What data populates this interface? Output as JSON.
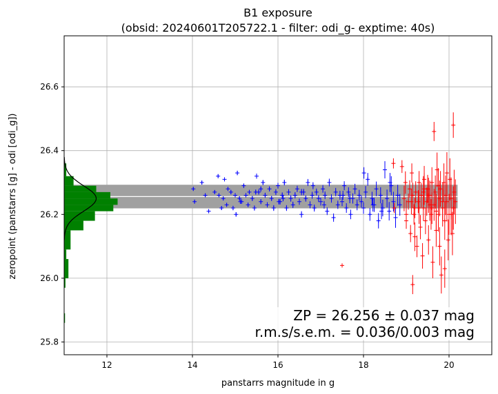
{
  "chart_data": {
    "type": "scatter",
    "title": "B1 exposure",
    "subtitle": "(obsid: 20240601T205722.1 - filter: odi_g- exptime: 40s)",
    "xlabel": "panstarrs magnitude in g",
    "ylabel": "zeropoint (panstarrs [g] - odi [odi_g])",
    "xlim": [
      11.0,
      21.0
    ],
    "ylim": [
      25.76,
      26.76
    ],
    "xticks": [
      12,
      14,
      16,
      18,
      20
    ],
    "yticks": [
      25.8,
      26.0,
      26.2,
      26.4,
      26.6
    ],
    "grid": true,
    "annotations": [
      "ZP = 26.256 ± 0.037 mag",
      "r.m.s/s.e.m. = 0.036/0.003 mag"
    ],
    "zeropoint": {
      "value": 26.256,
      "sigma": 0.037,
      "xrange": [
        11.0,
        20.2
      ]
    },
    "colors": {
      "used": "#0000ff",
      "rejected": "#ff0000",
      "histogram": "#008000",
      "band": "#a0a0a0",
      "gauss": "#000000"
    },
    "series": [
      {
        "role": "used",
        "x": [
          14.02,
          14.05,
          14.22,
          14.38,
          14.52,
          14.6,
          14.62,
          14.72,
          14.75,
          14.8,
          14.83,
          14.9,
          14.95,
          15.0,
          15.05,
          15.1,
          15.15,
          15.2,
          15.25,
          15.3,
          15.33,
          15.4,
          15.45,
          15.5,
          15.55,
          15.6,
          15.65,
          15.7,
          15.75,
          15.8,
          15.85,
          15.9,
          15.95,
          16.0,
          16.05,
          16.1,
          16.15,
          16.2,
          16.25,
          16.3,
          16.35,
          16.4,
          16.45,
          16.5,
          16.55,
          16.6,
          16.65,
          16.7,
          16.75,
          16.8,
          16.85,
          16.9,
          16.95,
          17.0,
          17.05,
          17.1,
          17.15,
          17.2,
          17.25,
          17.3,
          17.35,
          17.4,
          17.45,
          17.5,
          17.55,
          17.6,
          17.65,
          17.7,
          17.75,
          17.8,
          17.85,
          17.9,
          17.95,
          18.0,
          18.05,
          18.1,
          18.15,
          18.2,
          18.25,
          18.3,
          18.35,
          18.4,
          18.45,
          18.5,
          18.55,
          18.6,
          18.65,
          18.7,
          18.75,
          18.8,
          18.85,
          14.3,
          14.68,
          15.12,
          15.6,
          16.12,
          16.55,
          17.08,
          17.52,
          18.01,
          18.42,
          18.62,
          15.02,
          15.48,
          16.02,
          16.82,
          17.68,
          18.22
        ],
        "y": [
          26.28,
          26.24,
          26.3,
          26.21,
          26.27,
          26.32,
          26.26,
          26.25,
          26.31,
          26.23,
          26.28,
          26.27,
          26.22,
          26.26,
          26.33,
          26.25,
          26.24,
          26.29,
          26.26,
          26.23,
          26.27,
          26.25,
          26.22,
          26.32,
          26.27,
          26.24,
          26.3,
          26.26,
          26.23,
          26.28,
          26.25,
          26.22,
          26.27,
          26.29,
          26.24,
          26.26,
          26.3,
          26.22,
          26.27,
          26.25,
          26.23,
          26.26,
          26.28,
          26.24,
          26.2,
          26.27,
          26.25,
          26.3,
          26.23,
          26.26,
          26.22,
          26.27,
          26.25,
          26.24,
          26.28,
          26.26,
          26.21,
          26.3,
          26.25,
          26.19,
          26.27,
          26.23,
          26.26,
          26.24,
          26.29,
          26.22,
          26.27,
          26.2,
          26.25,
          26.28,
          26.23,
          26.26,
          26.24,
          26.22,
          26.27,
          26.31,
          26.2,
          26.25,
          26.23,
          26.28,
          26.18,
          26.26,
          26.22,
          26.34,
          26.25,
          26.21,
          26.29,
          26.24,
          26.19,
          26.26,
          26.23,
          26.26,
          26.22,
          26.24,
          26.28,
          26.25,
          26.27,
          26.23,
          26.26,
          26.33,
          26.21,
          26.3,
          26.2,
          26.27,
          26.24,
          26.29,
          26.25,
          26.23
        ],
        "yerr": [
          0.006,
          0.006,
          0.006,
          0.006,
          0.006,
          0.006,
          0.006,
          0.006,
          0.006,
          0.006,
          0.006,
          0.007,
          0.007,
          0.007,
          0.007,
          0.007,
          0.007,
          0.007,
          0.007,
          0.007,
          0.007,
          0.008,
          0.008,
          0.008,
          0.008,
          0.008,
          0.008,
          0.008,
          0.008,
          0.008,
          0.008,
          0.009,
          0.009,
          0.009,
          0.009,
          0.009,
          0.009,
          0.009,
          0.009,
          0.01,
          0.01,
          0.01,
          0.01,
          0.01,
          0.01,
          0.01,
          0.01,
          0.011,
          0.011,
          0.011,
          0.011,
          0.011,
          0.011,
          0.012,
          0.012,
          0.012,
          0.012,
          0.012,
          0.013,
          0.013,
          0.013,
          0.013,
          0.014,
          0.014,
          0.014,
          0.015,
          0.015,
          0.015,
          0.016,
          0.016,
          0.017,
          0.017,
          0.018,
          0.018,
          0.019,
          0.02,
          0.02,
          0.021,
          0.022,
          0.023,
          0.024,
          0.025,
          0.026,
          0.027,
          0.028,
          0.029,
          0.03,
          0.031,
          0.032,
          0.033,
          0.034,
          0.006,
          0.006,
          0.007,
          0.008,
          0.009,
          0.01,
          0.012,
          0.014,
          0.018,
          0.025,
          0.03,
          0.007,
          0.008,
          0.009,
          0.011,
          0.015,
          0.021
        ]
      },
      {
        "role": "rejected",
        "x": [
          17.5,
          18.7,
          18.72,
          18.9,
          19.0,
          19.05,
          19.08,
          19.1,
          19.13,
          19.15,
          19.18,
          19.2,
          19.22,
          19.25,
          19.28,
          19.3,
          19.33,
          19.35,
          19.38,
          19.4,
          19.42,
          19.45,
          19.48,
          19.5,
          19.52,
          19.55,
          19.58,
          19.6,
          19.62,
          19.65,
          19.68,
          19.7,
          19.72,
          19.75,
          19.78,
          19.8,
          19.82,
          19.85,
          19.88,
          19.9,
          19.92,
          19.95,
          19.98,
          20.0,
          20.02,
          20.05,
          20.08,
          20.1,
          20.12,
          20.15,
          19.65,
          20.1,
          18.95,
          19.0,
          19.3,
          19.52,
          19.78,
          19.95,
          18.98,
          19.12,
          19.42,
          19.6,
          19.85,
          20.05,
          19.2,
          19.4,
          19.7,
          19.9,
          19.55,
          19.75,
          19.15
        ],
        "y": [
          26.04,
          26.36,
          26.22,
          26.35,
          26.18,
          26.24,
          26.28,
          26.14,
          26.33,
          25.98,
          26.2,
          26.22,
          26.27,
          26.1,
          26.24,
          26.3,
          26.16,
          26.26,
          26.07,
          26.22,
          26.31,
          26.18,
          26.24,
          26.28,
          26.12,
          26.26,
          26.2,
          26.3,
          26.05,
          26.23,
          26.27,
          26.15,
          26.34,
          26.2,
          26.25,
          26.28,
          26.01,
          26.22,
          26.3,
          26.18,
          26.26,
          26.24,
          26.12,
          26.2,
          26.31,
          26.25,
          26.14,
          26.22,
          26.27,
          26.24,
          26.46,
          26.48,
          26.25,
          26.2,
          26.22,
          26.26,
          26.1,
          26.33,
          26.3,
          26.24,
          26.28,
          26.22,
          26.24,
          26.2,
          26.13,
          26.27,
          26.21,
          26.03,
          26.23,
          26.29,
          26.26
        ],
        "yerr": [
          0.006,
          0.016,
          0.016,
          0.02,
          0.025,
          0.025,
          0.027,
          0.027,
          0.03,
          0.03,
          0.032,
          0.032,
          0.034,
          0.034,
          0.036,
          0.036,
          0.038,
          0.038,
          0.04,
          0.04,
          0.042,
          0.042,
          0.044,
          0.044,
          0.046,
          0.046,
          0.048,
          0.048,
          0.05,
          0.05,
          0.052,
          0.052,
          0.054,
          0.054,
          0.056,
          0.056,
          0.058,
          0.058,
          0.06,
          0.06,
          0.062,
          0.062,
          0.064,
          0.064,
          0.066,
          0.066,
          0.068,
          0.068,
          0.07,
          0.07,
          0.03,
          0.04,
          0.04,
          0.045,
          0.05,
          0.055,
          0.06,
          0.065,
          0.035,
          0.04,
          0.05,
          0.05,
          0.06,
          0.065,
          0.045,
          0.05,
          0.055,
          0.06,
          0.05,
          0.055,
          0.04
        ]
      }
    ],
    "histogram": {
      "orientation": "horizontal",
      "bins": [
        {
          "y0": 25.86,
          "y1": 25.89,
          "value": 0.02
        },
        {
          "y0": 25.97,
          "y1": 26.0,
          "value": 0.03
        },
        {
          "y0": 26.0,
          "y1": 26.06,
          "value": 0.1
        },
        {
          "y0": 26.06,
          "y1": 26.09,
          "value": 0.05
        },
        {
          "y0": 26.09,
          "y1": 26.15,
          "value": 0.15
        },
        {
          "y0": 26.15,
          "y1": 26.18,
          "value": 0.45
        },
        {
          "y0": 26.18,
          "y1": 26.21,
          "value": 0.72
        },
        {
          "y0": 26.21,
          "y1": 26.23,
          "value": 1.15
        },
        {
          "y0": 26.23,
          "y1": 26.25,
          "value": 1.25
        },
        {
          "y0": 26.25,
          "y1": 26.27,
          "value": 1.08
        },
        {
          "y0": 26.27,
          "y1": 26.29,
          "value": 0.75
        },
        {
          "y0": 26.29,
          "y1": 26.32,
          "value": 0.22
        },
        {
          "y0": 26.32,
          "y1": 26.36,
          "value": 0.05
        }
      ]
    },
    "gaussian": {
      "mean": 26.25,
      "sigma": 0.04,
      "peak": 0.75,
      "ymin": 26.12,
      "ymax": 26.38
    }
  }
}
